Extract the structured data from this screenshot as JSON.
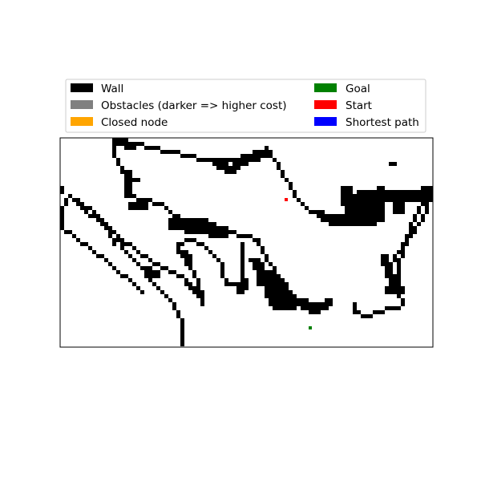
{
  "chart_data": {
    "type": "heatmap",
    "title": "",
    "xlabel": "",
    "ylabel": "",
    "grid_size": [
      93,
      52
    ],
    "axes_ticks": false,
    "legend": {
      "placement": "above-plot",
      "entries": [
        {
          "key": "wall",
          "label": "Wall",
          "color": "#000000"
        },
        {
          "key": "obstacles",
          "label": "Obstacles (darker => higher cost)",
          "color": "#808080"
        },
        {
          "key": "closed",
          "label": "Closed node",
          "color": "#ffa500"
        },
        {
          "key": "goal",
          "label": "Goal",
          "color": "#008000"
        },
        {
          "key": "start",
          "label": "Start",
          "color": "#ff0000"
        },
        {
          "key": "path",
          "label": "Shortest path",
          "color": "#0000ff"
        }
      ]
    },
    "start_cell": [
      56,
      15
    ],
    "goal_cell": [
      62,
      47
    ],
    "wall_strokes": [
      {
        "w": 1,
        "pts": [
          [
            0,
            12
          ],
          [
            0,
            13
          ]
        ]
      },
      {
        "w": 1,
        "pts": [
          [
            2,
            14
          ],
          [
            0,
            17
          ],
          [
            0,
            22
          ]
        ]
      },
      {
        "w": 1,
        "pts": [
          [
            2,
            14
          ],
          [
            5,
            17
          ],
          [
            9,
            20
          ],
          [
            13,
            23
          ],
          [
            16,
            28
          ],
          [
            19,
            31
          ],
          [
            22,
            35
          ],
          [
            25,
            38
          ],
          [
            28,
            41
          ],
          [
            29,
            44
          ],
          [
            30,
            46
          ],
          [
            30,
            51
          ]
        ]
      },
      {
        "w": 1,
        "pts": [
          [
            2,
            14
          ],
          [
            4,
            15
          ],
          [
            8,
            18
          ],
          [
            12,
            22
          ],
          [
            15,
            25
          ],
          [
            18,
            27
          ],
          [
            22,
            30
          ],
          [
            26,
            32
          ],
          [
            31,
            35
          ],
          [
            32,
            37
          ],
          [
            35,
            38
          ]
        ]
      },
      {
        "w": 1,
        "pts": [
          [
            0,
            22
          ],
          [
            3,
            24
          ],
          [
            7,
            27
          ],
          [
            11,
            30
          ],
          [
            14,
            33
          ],
          [
            17,
            35
          ],
          [
            20,
            38
          ]
        ]
      },
      {
        "w": 1,
        "pts": [
          [
            11,
            22
          ],
          [
            12,
            24
          ],
          [
            13,
            26
          ]
        ]
      },
      {
        "w": 1,
        "pts": [
          [
            13,
            0
          ],
          [
            13,
            4
          ],
          [
            15,
            7
          ],
          [
            16,
            10
          ],
          [
            17,
            14
          ],
          [
            20,
            15
          ],
          [
            25,
            16
          ],
          [
            28,
            19
          ],
          [
            32,
            20
          ],
          [
            37,
            21
          ],
          [
            42,
            23
          ],
          [
            46,
            24
          ],
          [
            49,
            25
          ],
          [
            50,
            28
          ],
          [
            52,
            31
          ],
          [
            55,
            36
          ],
          [
            58,
            40
          ],
          [
            60,
            42
          ],
          [
            63,
            43
          ],
          [
            66,
            42
          ]
        ]
      },
      {
        "w": 1,
        "pts": [
          [
            13,
            0
          ],
          [
            18,
            1
          ],
          [
            23,
            2
          ],
          [
            27,
            3
          ],
          [
            32,
            4
          ],
          [
            36,
            5
          ],
          [
            42,
            5
          ],
          [
            46,
            4
          ],
          [
            49,
            3
          ],
          [
            51,
            2
          ],
          [
            52,
            4
          ],
          [
            54,
            6
          ],
          [
            55,
            9
          ],
          [
            57,
            11
          ],
          [
            58,
            14
          ],
          [
            60,
            16
          ],
          [
            62,
            18
          ],
          [
            65,
            19
          ]
        ]
      },
      {
        "w": 1,
        "pts": [
          [
            16,
            11
          ],
          [
            19,
            10
          ]
        ]
      },
      {
        "w": 1,
        "pts": [
          [
            29,
            26
          ],
          [
            32,
            25
          ],
          [
            35,
            26
          ],
          [
            38,
            29
          ],
          [
            40,
            31
          ]
        ]
      },
      {
        "w": 1,
        "pts": [
          [
            29,
            26
          ],
          [
            29,
            28
          ],
          [
            31,
            30
          ],
          [
            33,
            33
          ],
          [
            34,
            36
          ],
          [
            35,
            39
          ],
          [
            35,
            41
          ]
        ]
      },
      {
        "w": 1,
        "pts": [
          [
            31,
            36
          ],
          [
            33,
            38
          ],
          [
            35,
            40
          ]
        ]
      },
      {
        "w": 1,
        "pts": [
          [
            40,
            31
          ],
          [
            40,
            34
          ],
          [
            41,
            36
          ],
          [
            44,
            36
          ],
          [
            45,
            34
          ],
          [
            45,
            30
          ],
          [
            45,
            26
          ]
        ]
      },
      {
        "w": 1,
        "pts": [
          [
            47,
            30
          ],
          [
            49,
            33
          ],
          [
            49,
            36
          ]
        ]
      },
      {
        "w": 1,
        "pts": [
          [
            73,
            41
          ],
          [
            73,
            43
          ],
          [
            76,
            44
          ],
          [
            79,
            43
          ],
          [
            82,
            42
          ],
          [
            84,
            42
          ]
        ]
      },
      {
        "w": 1,
        "pts": [
          [
            82,
            37
          ],
          [
            82,
            31
          ],
          [
            84,
            28
          ],
          [
            87,
            24
          ],
          [
            89,
            21
          ],
          [
            91,
            17
          ],
          [
            93,
            12
          ]
        ]
      },
      {
        "w": 1,
        "pts": [
          [
            85,
            41
          ],
          [
            84,
            38
          ],
          [
            84,
            32
          ],
          [
            85,
            27
          ],
          [
            87,
            22
          ],
          [
            89,
            17
          ],
          [
            91,
            13
          ]
        ]
      },
      {
        "w": 1,
        "pts": [
          [
            82,
            6
          ],
          [
            83,
            6
          ]
        ]
      },
      {
        "w": 2,
        "pts": [
          [
            14,
            0
          ],
          [
            17,
            1
          ]
        ]
      },
      {
        "w": 2,
        "pts": [
          [
            16,
            8
          ],
          [
            16,
            13
          ]
        ]
      },
      {
        "w": 2,
        "pts": [
          [
            17,
            16
          ],
          [
            20,
            16
          ]
        ]
      },
      {
        "w": 2,
        "pts": [
          [
            28,
            20
          ],
          [
            35,
            20
          ]
        ]
      },
      {
        "w": 2,
        "pts": [
          [
            38,
            5
          ],
          [
            42,
            7
          ],
          [
            44,
            5
          ]
        ]
      },
      {
        "w": 2,
        "pts": [
          [
            44,
            5
          ],
          [
            47,
            4
          ],
          [
            50,
            3
          ]
        ]
      },
      {
        "w": 2,
        "pts": [
          [
            30,
            28
          ],
          [
            31,
            30
          ]
        ]
      },
      {
        "w": 2,
        "pts": [
          [
            21,
            32
          ],
          [
            23,
            33
          ]
        ]
      },
      {
        "w": 2,
        "pts": [
          [
            44,
            37
          ],
          [
            45,
            35
          ]
        ]
      },
      {
        "w": 2,
        "pts": [
          [
            48,
            30
          ],
          [
            49,
            32
          ]
        ]
      },
      {
        "w": 2,
        "pts": [
          [
            79,
            12
          ],
          [
            79,
            19
          ]
        ]
      },
      {
        "w": 2,
        "pts": [
          [
            80,
            29
          ],
          [
            81,
            33
          ],
          [
            83,
            35
          ]
        ]
      },
      {
        "w": 2,
        "pts": [
          [
            81,
            37
          ],
          [
            84,
            37
          ]
        ]
      },
      {
        "w": 2,
        "pts": [
          [
            58,
            40
          ],
          [
            64,
            41
          ],
          [
            66,
            40
          ]
        ]
      },
      {
        "w": 2,
        "pts": [
          [
            64,
            18
          ],
          [
            67,
            20
          ],
          [
            69,
            19
          ]
        ]
      },
      {
        "w": 3,
        "pts": [
          [
            27,
            20
          ],
          [
            34,
            21
          ],
          [
            39,
            22
          ]
        ]
      },
      {
        "w": 3,
        "pts": [
          [
            72,
            14
          ],
          [
            74,
            19
          ]
        ]
      },
      {
        "w": 3,
        "pts": [
          [
            70,
            12
          ],
          [
            71,
            18
          ],
          [
            72,
            19
          ]
        ]
      },
      {
        "w": 3,
        "pts": [
          [
            74,
            13
          ],
          [
            76,
            16
          ],
          [
            76,
            19
          ]
        ]
      },
      {
        "w": 3,
        "pts": [
          [
            76,
            13
          ],
          [
            78,
            13
          ],
          [
            81,
            13
          ]
        ]
      },
      {
        "w": 3,
        "pts": [
          [
            84,
            13
          ],
          [
            88,
            13
          ],
          [
            91,
            12
          ]
        ]
      },
      {
        "w": 3,
        "pts": [
          [
            83,
            13
          ],
          [
            83,
            16
          ]
        ]
      },
      {
        "w": 3,
        "pts": [
          [
            68,
            19
          ],
          [
            70,
            19
          ]
        ]
      },
      {
        "w": 4,
        "pts": [
          [
            50,
            33
          ],
          [
            52,
            36
          ],
          [
            55,
            39
          ]
        ]
      },
      {
        "w": 5,
        "pts": [
          [
            51,
            35
          ],
          [
            53,
            38
          ]
        ]
      }
    ]
  }
}
